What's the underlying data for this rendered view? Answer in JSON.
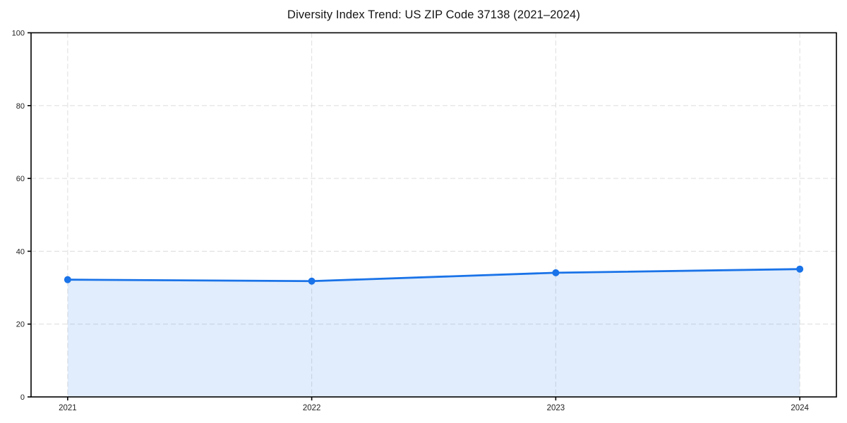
{
  "chart_data": {
    "type": "line",
    "title": "Diversity Index Trend: US ZIP Code 37138 (2021–2024)",
    "categories": [
      "2021",
      "2022",
      "2023",
      "2024"
    ],
    "values": [
      32.2,
      31.8,
      34.1,
      35.1
    ],
    "xlabel": "",
    "ylabel": "",
    "ylim": [
      0,
      100
    ],
    "yticks": [
      0,
      20,
      40,
      60,
      80,
      100
    ],
    "grid": true,
    "grid_style": "dashed",
    "legend": false,
    "marker": "circle",
    "area_fill": true,
    "colors": {
      "line": "#1a73e8",
      "marker": "#1a73e8",
      "area_fill": "#1a73e8",
      "area_fill_opacity": 0.13,
      "grid": "#e0e0e0",
      "axis": "#000000",
      "tick_text": "#222222",
      "background": "#ffffff"
    }
  }
}
